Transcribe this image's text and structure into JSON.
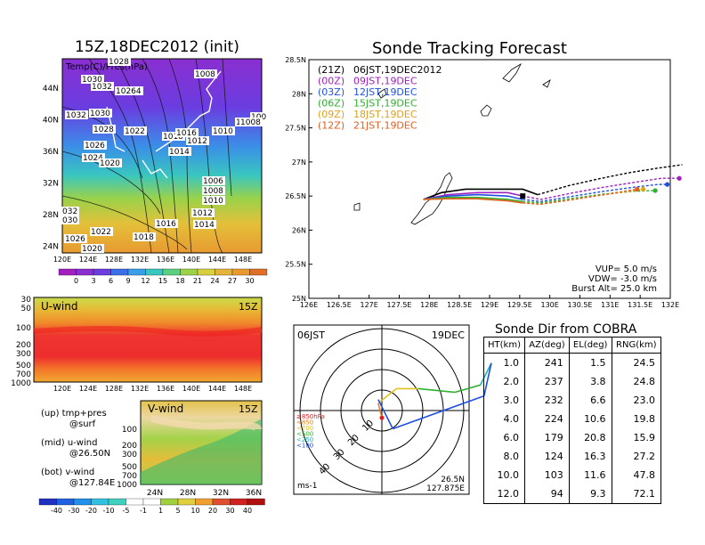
{
  "left": {
    "map_title": "15Z,18DEC2012 (init)",
    "map_label": "Temp(C)/Pres(hPa)",
    "map_lat_ticks": [
      "44N",
      "40N",
      "36N",
      "32N",
      "28N",
      "24N"
    ],
    "map_lon_ticks": [
      "120E",
      "124E",
      "128E",
      "132E",
      "136E",
      "140E",
      "144E",
      "148E"
    ],
    "isobar_labels": [
      "1028",
      "1030",
      "1032",
      "10264",
      "1008",
      "1032",
      "1030",
      "1028",
      "1022",
      "1018",
      "1016",
      "1012",
      "1026",
      "1010",
      "1008",
      "1024",
      "1014",
      "1020",
      "1006",
      "1008",
      "1010",
      "1012",
      "032",
      "030",
      "1016",
      "1014",
      "1022",
      "1018",
      "1026",
      "1020",
      "100",
      "1008"
    ],
    "temp_colorbar": [
      "0",
      "3",
      "6",
      "9",
      "12",
      "15",
      "18",
      "21",
      "24",
      "27",
      "30"
    ],
    "uwind_label": "U-wind",
    "uwind_time": "15Z",
    "uwind_p_ticks": [
      "30",
      "50",
      "100",
      "200",
      "300",
      "500",
      "700",
      "1000"
    ],
    "uwind_lon_ticks": [
      "120E",
      "124E",
      "128E",
      "132E",
      "136E",
      "140E",
      "144E",
      "148E"
    ],
    "vwind_label": "V-wind",
    "vwind_time": "15Z",
    "vwind_p_ticks": [
      "100",
      "200",
      "300",
      "500",
      "700",
      "1000"
    ],
    "vwind_lat_ticks": [
      "24N",
      "28N",
      "32N",
      "36N"
    ],
    "notes": [
      "(up) tmp+pres",
      "@surf",
      "(mid) u-wind",
      "@26.50N",
      "(bot) v-wind",
      "@127.84E"
    ],
    "wind_colorbar": [
      "-40",
      "-30",
      "-20",
      "-10",
      "-5",
      "-1",
      "1",
      "5",
      "10",
      "20",
      "30",
      "40"
    ]
  },
  "track": {
    "title": "Sonde Tracking Forecast",
    "legend": [
      {
        "code": "(21Z)",
        "text": "06JST,19DEC2012",
        "color": "#000000"
      },
      {
        "code": "(00Z)",
        "text": "09JST,19DEC",
        "color": "#a020c0"
      },
      {
        "code": "(03Z)",
        "text": "12JST,19DEC",
        "color": "#2050e0"
      },
      {
        "code": "(06Z)",
        "text": "15JST,19DEC",
        "color": "#30b030"
      },
      {
        "code": "(09Z)",
        "text": "18JST,19DEC",
        "color": "#e0a020"
      },
      {
        "code": "(12Z)",
        "text": "21JST,19DEC",
        "color": "#e06020"
      }
    ],
    "params": [
      "VUP= 5.0 m/s",
      "VDW= -3.0 m/s",
      "Burst Alt= 25.0 km"
    ],
    "lat_ticks": [
      "28.5N",
      "28N",
      "27.5N",
      "27N",
      "26.5N",
      "26N",
      "25.5N",
      "25N"
    ],
    "lon_ticks": [
      "126E",
      "126.5E",
      "127E",
      "127.5E",
      "128E",
      "128.5E",
      "129E",
      "129.5E",
      "130E",
      "130.5E",
      "131E",
      "131.5E",
      "132E"
    ]
  },
  "chart_data": [
    {
      "type": "line",
      "title": "Sonde Tracking Forecast",
      "xlabel": "",
      "ylabel": "",
      "xlim": [
        126,
        132
      ],
      "ylim": [
        25,
        28.5
      ],
      "launch": [
        129.55,
        26.5
      ],
      "series": [
        {
          "name": "(21Z) 06JST,19DEC2012",
          "color": "#000000",
          "x": [
            127.9,
            128.2,
            128.6,
            129.0,
            129.55,
            129.8,
            130.3,
            130.8,
            131.3,
            131.8,
            132.2
          ],
          "y": [
            26.45,
            26.55,
            26.6,
            26.6,
            26.6,
            26.52,
            26.65,
            26.75,
            26.84,
            26.91,
            26.96
          ]
        },
        {
          "name": "(00Z) 09JST,19DEC",
          "color": "#a020c0",
          "x": [
            127.9,
            128.3,
            128.8,
            129.3,
            129.55,
            129.85,
            130.4,
            130.9,
            131.4,
            131.85,
            132.15
          ],
          "y": [
            26.45,
            26.52,
            26.55,
            26.55,
            26.5,
            26.45,
            26.55,
            26.63,
            26.7,
            26.76,
            26.76
          ]
        },
        {
          "name": "(03Z) 12JST,19DEC",
          "color": "#2050e0",
          "x": [
            127.9,
            128.3,
            128.8,
            129.3,
            129.55,
            129.85,
            130.4,
            130.9,
            131.4,
            131.8,
            131.95
          ],
          "y": [
            26.45,
            26.5,
            26.52,
            26.5,
            26.45,
            26.42,
            26.5,
            26.57,
            26.63,
            26.67,
            26.67
          ]
        },
        {
          "name": "(06Z) 15JST,19DEC",
          "color": "#30b030",
          "x": [
            127.9,
            128.3,
            128.8,
            129.3,
            129.55,
            129.85,
            130.4,
            130.9,
            131.4,
            131.75
          ],
          "y": [
            26.45,
            26.48,
            26.48,
            26.45,
            26.42,
            26.4,
            26.47,
            26.53,
            26.57,
            26.58
          ]
        },
        {
          "name": "(09Z) 18JST,19DEC",
          "color": "#e0a020",
          "x": [
            127.9,
            128.3,
            128.8,
            129.3,
            129.55,
            129.85,
            130.4,
            130.9,
            131.35,
            131.55
          ],
          "y": [
            26.45,
            26.46,
            26.46,
            26.43,
            26.4,
            26.38,
            26.45,
            26.52,
            26.57,
            26.6
          ]
        },
        {
          "name": "(12Z) 21JST,19DEC",
          "color": "#e06020",
          "x": [
            127.9,
            128.3,
            128.8,
            129.3,
            129.55,
            129.85,
            130.4,
            130.9,
            131.3,
            131.45
          ],
          "y": [
            26.45,
            26.46,
            26.46,
            26.43,
            26.4,
            26.38,
            26.45,
            26.52,
            26.58,
            26.6
          ]
        }
      ]
    },
    {
      "type": "scatter",
      "title": "06JST 19DEC",
      "subtitle": "Sonde Dir from COBRA",
      "station": "26.5N 127.875E",
      "units": "ms-1",
      "range_ring_labels": [
        "10",
        "20",
        "30",
        "40"
      ],
      "pressure_legend": [
        {
          "text": "≥850hPa",
          "color": "#e02020"
        },
        {
          "text": "<850",
          "color": "#f08020"
        },
        {
          "text": "<700",
          "color": "#e0c020"
        },
        {
          "text": "<500",
          "color": "#30b030"
        },
        {
          "text": "<250",
          "color": "#20b0b0"
        },
        {
          "text": "<100",
          "color": "#2050e0"
        }
      ],
      "hodograph": [
        {
          "u": 0,
          "v": -2,
          "color": "#e02020"
        },
        {
          "u": -1,
          "v": 2,
          "color": "#f08020"
        },
        {
          "u": 4,
          "v": 6,
          "color": "#e0c020"
        },
        {
          "u": 10,
          "v": 6,
          "color": "#e0c020"
        },
        {
          "u": 20,
          "v": 5,
          "color": "#30b030"
        },
        {
          "u": 27,
          "v": 7,
          "color": "#30b030"
        },
        {
          "u": 30,
          "v": 13,
          "color": "#20b0b0"
        },
        {
          "u": 28,
          "v": 4,
          "color": "#2050e0"
        },
        {
          "u": 3,
          "v": -5,
          "color": "#2050e0"
        },
        {
          "u": -1,
          "v": 3,
          "color": "#2050e0"
        }
      ]
    },
    {
      "type": "table",
      "title": "Sonde Dir from COBRA",
      "columns": [
        "HT(km)",
        "AZ(deg)",
        "EL(deg)",
        "RNG(km)"
      ],
      "rows": [
        [
          "1.0",
          "241",
          "1.5",
          "24.5"
        ],
        [
          "2.0",
          "237",
          "3.8",
          "24.8"
        ],
        [
          "3.0",
          "232",
          "6.6",
          "23.0"
        ],
        [
          "4.0",
          "224",
          "10.6",
          "19.8"
        ],
        [
          "6.0",
          "179",
          "20.8",
          "15.9"
        ],
        [
          "8.0",
          "124",
          "16.3",
          "27.2"
        ],
        [
          "10.0",
          "103",
          "11.6",
          "47.8"
        ],
        [
          "12.0",
          "94",
          "9.3",
          "72.1"
        ]
      ]
    }
  ]
}
